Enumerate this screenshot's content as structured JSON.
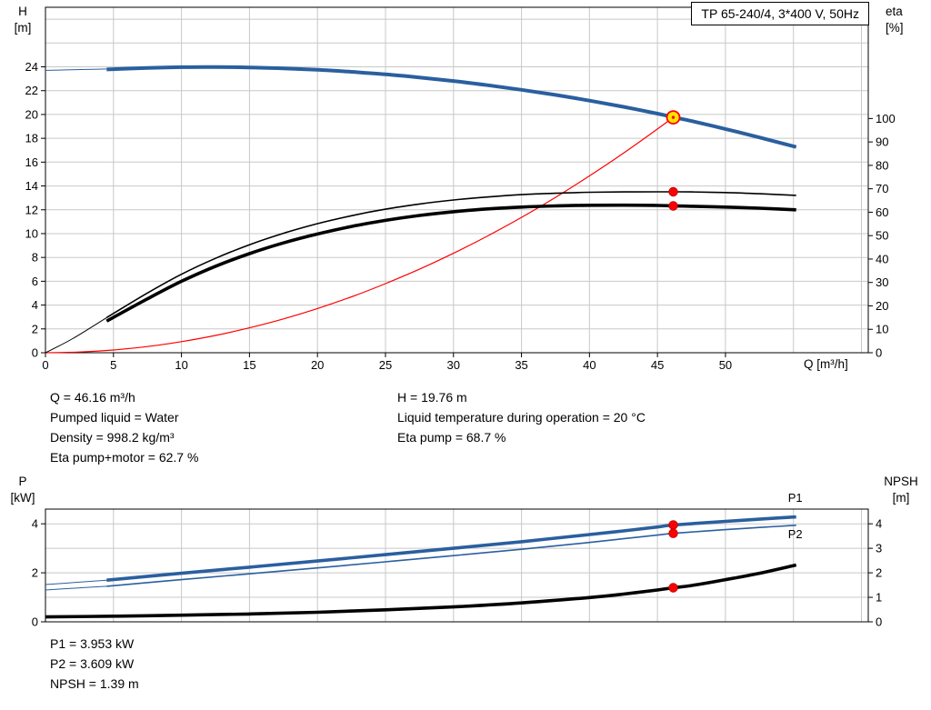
{
  "title_box": {
    "label": "TP 65-240/4, 3*400 V, 50Hz"
  },
  "colors": {
    "curve_blue": "#2a5f9f",
    "curve_red": "#ff0000",
    "curve_black": "#000000",
    "duty_fill": "#ffe400",
    "dot_red": "#ff0000",
    "dot_edge": "#b40000",
    "grid": "#c8c8c8",
    "frame": "#000000"
  },
  "annotations": {
    "left": [
      "Q = 46.16 m³/h",
      "Pumped liquid = Water",
      "Density = 998.2 kg/m³",
      "Eta pump+motor = 62.7 %"
    ],
    "right": [
      "H = 19.76 m",
      "Liquid temperature during operation = 20 °C",
      "Eta pump = 68.7 %"
    ],
    "bottom": [
      "P1 = 3.953 kW",
      "P2 = 3.609 kW",
      "NPSH = 1.39 m"
    ]
  },
  "chart_data": [
    {
      "name": "hq",
      "type": "line",
      "title": "Pump head and efficiency vs flow",
      "x_axis": {
        "label": "Q [m³/h]",
        "min": 0,
        "max": 60.5,
        "tick_labels": [
          0,
          5,
          10,
          15,
          20,
          25,
          30,
          35,
          40,
          45,
          50
        ],
        "grid": [
          5,
          10,
          15,
          20,
          25,
          30,
          35,
          40,
          45,
          50,
          55,
          60
        ]
      },
      "y_left": {
        "label": "H",
        "unit": "[m]",
        "min": 0,
        "max": 29,
        "tick_labels": [
          0,
          2,
          4,
          6,
          8,
          10,
          12,
          14,
          16,
          18,
          20,
          22,
          24
        ],
        "grid": [
          2,
          4,
          6,
          8,
          10,
          12,
          14,
          16,
          18,
          20,
          22,
          24,
          26,
          28
        ]
      },
      "y_right": {
        "label": "eta",
        "unit": "[%]",
        "min": 0,
        "max": 147.5,
        "tick_labels": [
          0,
          10,
          20,
          30,
          40,
          50,
          60,
          70,
          80,
          90,
          100
        ],
        "grid": []
      },
      "series": [
        {
          "name": "head-lead",
          "axis": "left",
          "color": "#2a5f9f",
          "width": 1,
          "x": [
            0,
            1.5,
            3,
            4.5
          ],
          "y": [
            23.7,
            23.74,
            23.78,
            23.82
          ]
        },
        {
          "name": "head",
          "axis": "left",
          "color": "#2a5f9f",
          "width": 4,
          "x": [
            4.5,
            7.5,
            10,
            12.5,
            15,
            17.5,
            20,
            22.5,
            25,
            27.5,
            30,
            32.5,
            35,
            37.5,
            40,
            42.5,
            45,
            46.16,
            47.5,
            50,
            52.5,
            55.2
          ],
          "y": [
            23.78,
            23.91,
            23.97,
            23.98,
            23.95,
            23.87,
            23.75,
            23.58,
            23.37,
            23.11,
            22.81,
            22.46,
            22.07,
            21.64,
            21.16,
            20.64,
            20.07,
            19.78,
            19.45,
            18.78,
            18.07,
            17.27
          ]
        },
        {
          "name": "system-curve",
          "axis": "left",
          "color": "#ff0000",
          "width": 1.2,
          "x": [
            0,
            2.5,
            5,
            7.5,
            10,
            12.5,
            15,
            17.5,
            20,
            22.5,
            25,
            27.5,
            30,
            32.5,
            35,
            37.5,
            40,
            42.5,
            45,
            46.16
          ],
          "y": [
            0,
            0.06,
            0.23,
            0.52,
            0.93,
            1.45,
            2.09,
            2.84,
            3.71,
            4.69,
            5.8,
            7.01,
            8.35,
            9.8,
            11.36,
            13.04,
            14.84,
            16.75,
            18.78,
            19.76
          ]
        },
        {
          "name": "eta-pump-lead",
          "axis": "right",
          "color": "#000000",
          "width": 1,
          "x": [
            0,
            2,
            4.5
          ],
          "y": [
            0,
            6,
            15
          ]
        },
        {
          "name": "eta-pump",
          "axis": "right",
          "color": "#000000",
          "width": 1.6,
          "x": [
            4.5,
            7.5,
            10,
            12.5,
            15,
            17.5,
            20,
            22.5,
            25,
            27.5,
            30,
            32.5,
            35,
            37.5,
            40,
            42.5,
            45,
            46.16,
            47.5,
            50,
            52.5,
            55.2
          ],
          "y": [
            15,
            25.5,
            33.5,
            40.3,
            46.1,
            51,
            55.1,
            58.5,
            61.3,
            63.5,
            65.2,
            66.5,
            67.5,
            68.1,
            68.5,
            68.68,
            68.72,
            68.7,
            68.65,
            68.4,
            67.9,
            67.2
          ]
        },
        {
          "name": "eta-pump-motor",
          "axis": "right",
          "color": "#000000",
          "width": 3.6,
          "x": [
            4.5,
            7.5,
            10,
            12.5,
            15,
            17.5,
            20,
            22.5,
            25,
            27.5,
            30,
            32.5,
            35,
            37.5,
            40,
            42.5,
            45,
            46.16,
            47.5,
            50,
            52.5,
            55.2
          ],
          "y": [
            13.5,
            23,
            30.5,
            36.9,
            42.3,
            46.9,
            50.7,
            53.9,
            56.5,
            58.6,
            60.2,
            61.4,
            62.2,
            62.7,
            62.95,
            63.0,
            62.9,
            62.7,
            62.55,
            62.2,
            61.7,
            61.0
          ]
        }
      ],
      "markers": [
        {
          "name": "eta-pump-motor-point",
          "x": 46.16,
          "y": 62.7,
          "axis": "right",
          "style": "dot"
        },
        {
          "name": "eta-pump-point",
          "x": 46.16,
          "y": 68.7,
          "axis": "right",
          "style": "dot"
        },
        {
          "name": "duty-point",
          "x": 46.16,
          "y": 19.76,
          "axis": "left",
          "style": "duty"
        }
      ],
      "series_labels": []
    },
    {
      "name": "p-npsh",
      "type": "line",
      "title": "Power and NPSH vs flow",
      "x_axis": {
        "label": "",
        "min": 0,
        "max": 60.5,
        "tick_labels": [],
        "grid": [
          5,
          10,
          15,
          20,
          25,
          30,
          35,
          40,
          45,
          50,
          55,
          60
        ]
      },
      "y_left": {
        "label": "P",
        "unit": "[kW]",
        "min": 0,
        "max": 4.6,
        "tick_labels": [
          0,
          2,
          4
        ],
        "grid": []
      },
      "y_right": {
        "label": "NPSH",
        "unit": "[m]",
        "min": 0,
        "max": 4.6,
        "tick_labels": [
          0,
          1,
          2,
          3,
          4
        ],
        "grid": [
          1,
          2,
          3,
          4
        ]
      },
      "series": [
        {
          "name": "p1-lead",
          "axis": "left",
          "color": "#2a5f9f",
          "width": 1,
          "x": [
            0,
            2,
            4.5
          ],
          "y": [
            1.52,
            1.6,
            1.7
          ]
        },
        {
          "name": "p1",
          "axis": "left",
          "color": "#2a5f9f",
          "width": 3.6,
          "x": [
            4.5,
            10,
            15,
            20,
            25,
            30,
            35,
            40,
            42.5,
            45,
            46.16,
            50,
            52.5,
            55.2
          ],
          "y": [
            1.7,
            1.98,
            2.23,
            2.48,
            2.74,
            3.0,
            3.27,
            3.56,
            3.71,
            3.87,
            3.95,
            4.1,
            4.19,
            4.28
          ]
        },
        {
          "name": "p2-lead",
          "axis": "left",
          "color": "#2a5f9f",
          "width": 1,
          "x": [
            0,
            2,
            4.5
          ],
          "y": [
            1.3,
            1.37,
            1.45
          ]
        },
        {
          "name": "p2",
          "axis": "left",
          "color": "#2a5f9f",
          "width": 1.6,
          "x": [
            4.5,
            10,
            15,
            20,
            25,
            30,
            35,
            40,
            42.5,
            45,
            46.16,
            50,
            52.5,
            55.2
          ],
          "y": [
            1.45,
            1.72,
            1.96,
            2.2,
            2.45,
            2.7,
            2.96,
            3.24,
            3.39,
            3.54,
            3.61,
            3.76,
            3.85,
            3.94
          ]
        },
        {
          "name": "npsh",
          "axis": "right",
          "color": "#000000",
          "width": 3.6,
          "x": [
            0,
            5,
            10,
            15,
            20,
            25,
            30,
            35,
            40,
            42.5,
            45,
            46.16,
            47.5,
            50,
            52.5,
            55.2
          ],
          "y": [
            0.2,
            0.23,
            0.27,
            0.32,
            0.39,
            0.49,
            0.61,
            0.77,
            0.99,
            1.13,
            1.3,
            1.39,
            1.48,
            1.72,
            1.98,
            2.32
          ]
        }
      ],
      "markers": [
        {
          "name": "p1-point",
          "x": 46.16,
          "y": 3.953,
          "axis": "left",
          "style": "dot"
        },
        {
          "name": "p2-point",
          "x": 46.16,
          "y": 3.609,
          "axis": "left",
          "style": "dot"
        },
        {
          "name": "npsh-point",
          "x": 46.16,
          "y": 1.39,
          "axis": "right",
          "style": "dot"
        }
      ],
      "series_labels": [
        {
          "text": "P1",
          "x": 54.6,
          "y": 4.9,
          "axis": "left",
          "color": "#2a5f9f"
        },
        {
          "text": "P2",
          "x": 54.6,
          "y": 3.41,
          "axis": "left",
          "color": "#2a5f9f"
        }
      ]
    }
  ]
}
